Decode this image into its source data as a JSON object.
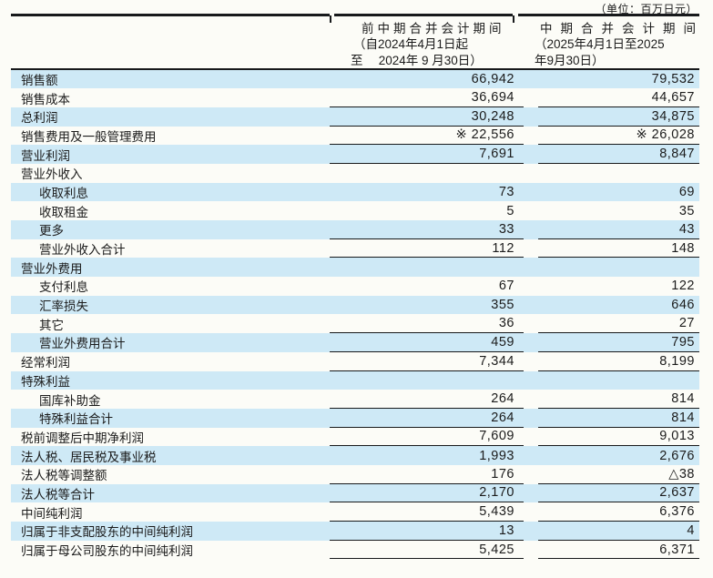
{
  "unit_label": "（单位：百万日元）",
  "header": {
    "col1": {
      "lines": [
        "前中期合并会计期间",
        "（自2024年4月1日起",
        "至　 2024年 9 月30日）"
      ]
    },
    "col2": {
      "lines": [
        "中期合并会计期间",
        "（2025年4月1日至2025",
        "年9月30日）"
      ]
    }
  },
  "colors": {
    "row_highlight": "#cee9f6",
    "rule": "#17191b",
    "text": "#1b1b1b",
    "paper": "#fcfcf7"
  },
  "rows": [
    {
      "label": "销售额",
      "indent": false,
      "shade": true,
      "line": false,
      "v1": "66,942",
      "v2": "79,532"
    },
    {
      "label": "销售成本",
      "indent": false,
      "shade": false,
      "line": true,
      "v1": "36,694",
      "v2": "44,657"
    },
    {
      "label": "总利润",
      "indent": false,
      "shade": true,
      "line": true,
      "v1": "30,248",
      "v2": "34,875"
    },
    {
      "label": "销售费用及一般管理费用",
      "indent": false,
      "shade": false,
      "line": true,
      "v1": "※ 22,556",
      "v2": "※ 26,028"
    },
    {
      "label": "营业利润",
      "indent": false,
      "shade": true,
      "line": true,
      "v1": "7,691",
      "v2": "8,847"
    },
    {
      "label": "营业外收入",
      "indent": false,
      "shade": false,
      "line": false,
      "v1": "",
      "v2": ""
    },
    {
      "label": "收取利息",
      "indent": true,
      "shade": true,
      "line": false,
      "v1": "73",
      "v2": "69"
    },
    {
      "label": "收取租金",
      "indent": true,
      "shade": false,
      "line": false,
      "v1": "5",
      "v2": "35"
    },
    {
      "label": "更多",
      "indent": true,
      "shade": true,
      "line": true,
      "v1": "33",
      "v2": "43"
    },
    {
      "label": "营业外收入合计",
      "indent": true,
      "shade": false,
      "line": true,
      "v1": "112",
      "v2": "148"
    },
    {
      "label": "营业外费用",
      "indent": false,
      "shade": true,
      "line": false,
      "v1": "",
      "v2": ""
    },
    {
      "label": "支付利息",
      "indent": true,
      "shade": false,
      "line": false,
      "v1": "67",
      "v2": "122"
    },
    {
      "label": "汇率损失",
      "indent": true,
      "shade": true,
      "line": false,
      "v1": "355",
      "v2": "646"
    },
    {
      "label": "其它",
      "indent": true,
      "shade": false,
      "line": true,
      "v1": "36",
      "v2": "27"
    },
    {
      "label": "营业外费用合计",
      "indent": true,
      "shade": true,
      "line": true,
      "v1": "459",
      "v2": "795"
    },
    {
      "label": "经常利润",
      "indent": false,
      "shade": false,
      "line": true,
      "v1": "7,344",
      "v2": "8,199"
    },
    {
      "label": "特殊利益",
      "indent": false,
      "shade": true,
      "line": false,
      "v1": "",
      "v2": ""
    },
    {
      "label": "国库补助金",
      "indent": true,
      "shade": false,
      "line": true,
      "v1": "264",
      "v2": "814"
    },
    {
      "label": "特殊利益合计",
      "indent": true,
      "shade": true,
      "line": true,
      "v1": "264",
      "v2": "814"
    },
    {
      "label": "税前调整后中期净利润",
      "indent": false,
      "shade": false,
      "line": true,
      "v1": "7,609",
      "v2": "9,013"
    },
    {
      "label": "法人税、居民税及事业税",
      "indent": false,
      "shade": true,
      "line": false,
      "v1": "1,993",
      "v2": "2,676"
    },
    {
      "label": "法人税等调整额",
      "indent": false,
      "shade": false,
      "line": true,
      "v1": "176",
      "v2": "△38"
    },
    {
      "label": "法人税等合计",
      "indent": false,
      "shade": true,
      "line": true,
      "v1": "2,170",
      "v2": "2,637"
    },
    {
      "label": "中间纯利润",
      "indent": false,
      "shade": false,
      "line": true,
      "v1": "5,439",
      "v2": "6,376"
    },
    {
      "label": "归属于非支配股东的中间纯利润",
      "indent": false,
      "shade": true,
      "line": true,
      "v1": "13",
      "v2": "4"
    },
    {
      "label": "归属于母公司股东的中间纯利润",
      "indent": false,
      "shade": false,
      "line": true,
      "v1": "5,425",
      "v2": "6,371"
    }
  ]
}
